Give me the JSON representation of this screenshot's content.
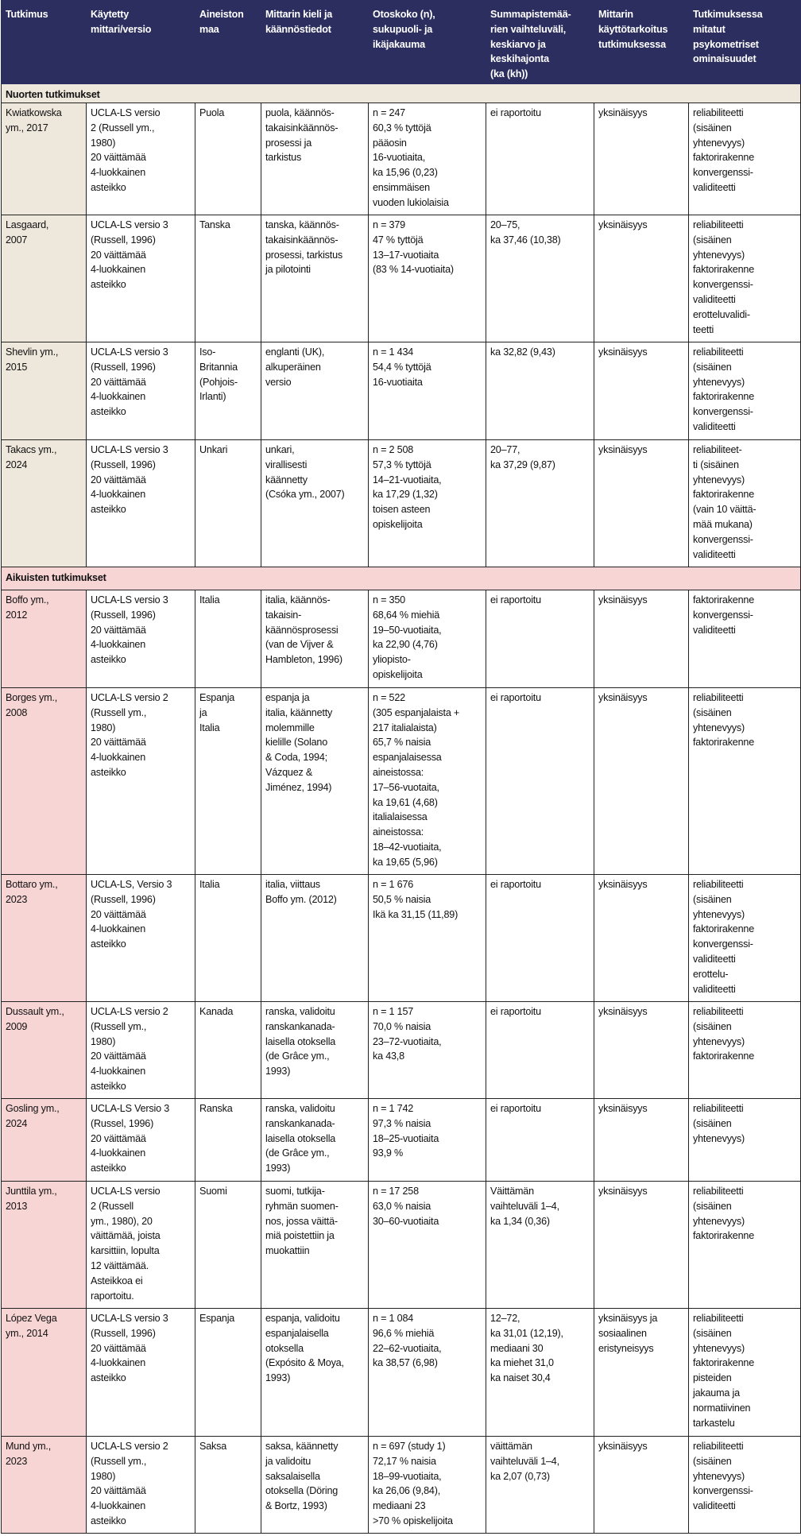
{
  "table": {
    "headers": [
      "Tutkimus",
      "Käytetty\nmittari/versio",
      "Aineiston\nmaa",
      "Mittarin kieli ja\nkäännöstiedot",
      "Otoskoko (n),\nsukupuoli- ja\nikäjakauma",
      "Summapistemää-\nrien vaihteluväli,\nkeskiarvo ja\nkeskihajonta\n(ka (kh))",
      "Mittarin\nkäyttötarkoitus\ntutkimuksessa",
      "Tutkimuksessa\nmitatut\npsykometriset\nominaisuudet"
    ],
    "sections": [
      {
        "title": "Nuorten tutkimukset",
        "color": "#eee7dc",
        "rows": [
          [
            "Kwiatkowska\nym., 2017",
            "UCLA-LS versio\n2 (Russell ym.,\n1980)\n20 väittämää\n4-luokkainen\nasteikko",
            "Puola",
            "puola, käännös-\ntakaisinkäännös-\nprosessi ja\ntarkistus",
            "n = 247\n60,3 % tyttöjä\npääosin\n16-vuotiaita,\nka 15,96 (0,23)\nensimmäisen\nvuoden lukiolaisia",
            "ei raportoitu",
            "yksinäisyys",
            "reliabiliteetti\n(sisäinen\nyhtenevyys)\nfaktorirakenne\nkonvergenssi-\nvaliditeetti"
          ],
          [
            "Lasgaard,\n2007",
            "UCLA-LS versio 3\n(Russell, 1996)\n20 väittämää\n4-luokkainen\nasteikko",
            "Tanska",
            "tanska, käännös-\ntakaisinkäännös-\nprosessi, tarkistus\nja pilotointi",
            "n = 379\n47 % tyttöjä\n13–17-vuotiaita\n(83 % 14-vuotiaita)",
            "20–75,\nka 37,46 (10,38)",
            "yksinäisyys",
            "reliabiliteetti\n(sisäinen\nyhtenevyys)\nfaktorirakenne\nkonvergenssi-\nvaliditeetti\nerotteluvalidi-\nteetti"
          ],
          [
            "Shevlin ym.,\n2015",
            "UCLA-LS versio 3\n(Russell, 1996)\n20 väittämää\n4-luokkainen\nasteikko",
            "Iso-\nBritannia\n(Pohjois-\nIrlanti)",
            "englanti (UK),\nalkuperäinen\nversio",
            "n = 1 434\n54,4 % tyttöjä\n16-vuotiaita",
            "ka 32,82 (9,43)",
            "yksinäisyys",
            "reliabiliteetti\n(sisäinen\nyhtenevyys)\nfaktorirakenne\nkonvergenssi-\nvaliditeetti"
          ],
          [
            "Takacs ym.,\n2024",
            "UCLA-LS versio 3\n(Russell, 1996)\n20 väittämää\n4-luokkainen\nasteikko",
            "Unkari",
            "unkari,\nvirallisesti\nkäännetty\n(Csóka ym., 2007)",
            "n = 2 508\n57,3 % tyttöjä\n14–21-vuotiaita,\nka 17,29 (1,32)\ntoisen asteen\nopiskelijoita",
            "20–77,\nka 37,29 (9,87)",
            "yksinäisyys",
            "reliabiliteet-\nti (sisäinen\nyhtenevyys)\nfaktorirakenne\n(vain 10 väittä-\nmää mukana)\nkonvergenssi-\nvaliditeetti"
          ]
        ]
      },
      {
        "title": "Aikuisten tutkimukset",
        "color": "#f8d5d5",
        "rows": [
          [
            "Boffo ym.,\n2012",
            "UCLA-LS versio 3\n(Russell, 1996)\n20 väittämää\n4-luokkainen\nasteikko",
            "Italia",
            "italia, käännös-\ntakaisin-\nkäännösprosessi\n(van de Vijver &\nHambleton, 1996)",
            "n = 350\n68,64 % miehiä\n19–50-vuotiaita,\nka 22,90 (4,76)\nyliopisto-\nopiskelijoita",
            "ei raportoitu",
            "yksinäisyys",
            "faktorirakenne\nkonvergenssi-\nvaliditeetti"
          ],
          [
            "Borges ym.,\n2008",
            "UCLA-LS versio 2\n(Russell ym.,\n1980)\n20 väittämää\n4-luokkainen\nasteikko",
            "Espanja\nja\nItalia",
            "espanja ja\nitalia, käännetty\nmolemmille\nkielille (Solano\n& Coda, 1994;\nVázquez &\nJiménez, 1994)",
            "n = 522\n(305 espanjalaista +\n217 italialaista)\n65,7 % naisia\nespanjalaisessa\naineistossa:\n17–56-vuotaita,\nka 19,61 (4,68)\nitalialaisessa\naineistossa:\n18–42-vuotiaita,\nka 19,65 (5,96)",
            "ei raportoitu",
            "yksinäisyys",
            "reliabiliteetti\n(sisäinen\nyhtenevyys)\nfaktorirakenne"
          ],
          [
            "Bottaro ym.,\n2023",
            "UCLA-LS, Versio 3\n(Russell, 1996)\n20 väittämää\n4-luokkainen\nasteikko",
            "Italia",
            "italia, viittaus\nBoffo ym. (2012)",
            "n = 1 676\n50,5 % naisia\nIkä ka 31,15 (11,89)",
            "ei raportoitu",
            "yksinäisyys",
            "reliabiliteetti\n(sisäinen\nyhtenevyys)\nfaktorirakenne\nkonvergenssi-\nvaliditeetti\nerottelu-\nvaliditeetti"
          ],
          [
            "Dussault ym.,\n2009",
            "UCLA-LS versio 2\n(Russell ym.,\n1980)\n20 väittämää\n4-luokkainen\nasteikko",
            "Kanada",
            "ranska, validoitu\nranskankanada-\nlaisella otoksella\n(de Grâce ym.,\n1993)",
            "n = 1 157\n70,0 % naisia\n23–72-vuotiaita,\nka 43,8",
            "ei raportoitu",
            "yksinäisyys",
            "reliabiliteetti\n(sisäinen\nyhtenevyys)\nfaktorirakenne"
          ],
          [
            "Gosling ym.,\n2024",
            "UCLA-LS Versio 3\n(Russel, 1996)\n20 väittämää\n4-luokkainen\nasteikko",
            "Ranska",
            "ranska, validoitu\nranskankanada-\nlaisella otoksella\n(de Grâce ym.,\n1993)",
            "n = 1 742\n97,3 % naisia\n18–25-vuotiaita\n93,9 %",
            "ei raportoitu",
            "yksinäisyys",
            "reliabiliteetti\n(sisäinen\nyhtenevyys)"
          ],
          [
            "Junttila ym.,\n2013",
            "UCLA-LS versio\n2 (Russell\nym., 1980), 20\nväittämää, joista\nkarsittiin, lopulta\n12 väittämää.\nAsteikkoa ei\nraportoitu.",
            "Suomi",
            "suomi, tutkija-\nryhmän suomen-\nnos, jossa väittä-\nmiä poistettiin ja\nmuokattiin",
            "n = 17 258\n63,0 % naisia\n30–60-vuotiaita",
            "Väittämän\nvaihteluväli 1–4,\nka 1,34 (0,36)",
            "yksinäisyys",
            "reliabiliteetti\n(sisäinen\nyhtenevyys)\nfaktorirakenne"
          ],
          [
            "López Vega\nym., 2014",
            "UCLA-LS versio 3\n(Russell, 1996)\n20 väittämää\n4-luokkainen\nasteikko",
            "Espanja",
            "espanja, validoitu\nespanjalaisella\notoksella\n(Expósito & Moya,\n1993)",
            "n = 1 084\n96,6 % miehiä\n22–62-vuotiaita,\nka 38,57 (6,98)",
            "12–72,\nka 31,01 (12,19),\nmediaani 30\nka miehet 31,0\nka naiset 30,4",
            "yksinäisyys ja\nsosiaalinen\neristyneisyys",
            "reliabiliteetti\n(sisäinen\nyhtenevyys)\nfaktorirakenne\npisteiden\njakauma ja\nnormatiivinen\ntarkastelu"
          ],
          [
            "Mund ym.,\n2023",
            "UCLA-LS versio 2\n(Russell ym.,\n1980)\n20 väittämää\n4-luokkainen\nasteikko",
            "Saksa",
            "saksa, käännetty\nja validoitu\nsaksalaisella\notoksella (Döring\n& Bortz, 1993)",
            "n = 697 (study 1)\n72,17 % naisia\n18–99-vuotiaita,\nka 26,06 (9,84),\nmediaani 23\n>70 % opiskelijoita",
            "väittämän\nvaihteluväli 1–4,\nka 2,07 (0,73)",
            "yksinäisyys",
            "reliabiliteetti\n(sisäinen\nyhtenevyys)\nkonvergenssi-\nvaliditeetti"
          ]
        ]
      }
    ]
  }
}
